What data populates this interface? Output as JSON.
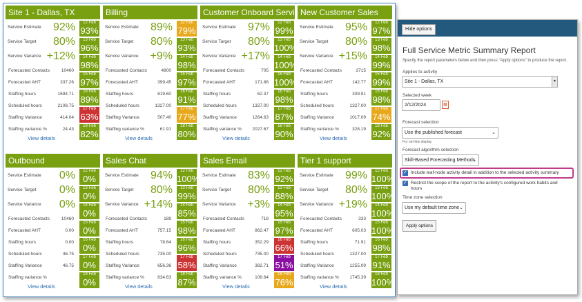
{
  "colors": {
    "green": "#78a010",
    "orange": "#e8a81c",
    "red": "#cc3333",
    "purple": "#8a0fa0",
    "link": "#2b6cb0",
    "accent_pink": "#c0398c"
  },
  "cards": [
    {
      "title": "Site 1 - Dallas, TX",
      "metrics": [
        {
          "label": "Service Estimate",
          "value": "92%"
        },
        {
          "label": "Service Target",
          "value": "80%"
        },
        {
          "label": "Service Variance",
          "value": "+12%"
        }
      ],
      "details": [
        {
          "label": "Forecasted Contacts",
          "value": "10460"
        },
        {
          "label": "Forecasted AHT",
          "value": "337.26"
        },
        {
          "label": "Staffing hours",
          "value": "1694.71"
        },
        {
          "label": "Scheduled hours",
          "value": "2108.75"
        },
        {
          "label": "Staffing Variance",
          "value": "414.04"
        },
        {
          "label": "Staffing variance %",
          "value": "24.43"
        }
      ],
      "link": "View details",
      "days": [
        {
          "date": "12 Feb",
          "pct": "93%",
          "status": "green"
        },
        {
          "date": "13 Feb",
          "pct": "96%",
          "status": "green"
        },
        {
          "date": "14 Feb",
          "pct": "98%",
          "status": "green"
        },
        {
          "date": "15 Feb",
          "pct": "97%",
          "status": "green"
        },
        {
          "date": "16 Feb",
          "pct": "89%",
          "status": "green"
        },
        {
          "date": "17 Feb",
          "pct": "63%",
          "status": "red"
        },
        {
          "date": "18 Feb",
          "pct": "82%",
          "status": "green"
        }
      ]
    },
    {
      "title": "Billing",
      "metrics": [
        {
          "label": "Service Estimate",
          "value": "89%"
        },
        {
          "label": "Service Target",
          "value": "80%"
        },
        {
          "label": "Service Variance",
          "value": "+9%"
        }
      ],
      "details": [
        {
          "label": "Forecasted Contacts",
          "value": "4800"
        },
        {
          "label": "Forecasted AHT",
          "value": "399.45"
        },
        {
          "label": "Staffing hours",
          "value": "819.60"
        },
        {
          "label": "Scheduled hours",
          "value": "1327.00"
        },
        {
          "label": "Staffing Variance",
          "value": "507.40"
        },
        {
          "label": "Staffing variance %",
          "value": "61.91"
        }
      ],
      "link": "View details",
      "days": [
        {
          "date": "12 Feb",
          "pct": "79%",
          "status": "orange"
        },
        {
          "date": "13 Feb",
          "pct": "93%",
          "status": "green"
        },
        {
          "date": "14 Feb",
          "pct": "98%",
          "status": "green"
        },
        {
          "date": "15 Feb",
          "pct": "97%",
          "status": "green"
        },
        {
          "date": "16 Feb",
          "pct": "91%",
          "status": "green"
        },
        {
          "date": "17 Feb",
          "pct": "77%",
          "status": "orange"
        },
        {
          "date": "18 Feb",
          "pct": "80%",
          "status": "green"
        }
      ]
    },
    {
      "title": "Customer Onboard Service",
      "metrics": [
        {
          "label": "Service Estimate",
          "value": "97%"
        },
        {
          "label": "Service Target",
          "value": "80%"
        },
        {
          "label": "Service Variance",
          "value": "+17%"
        }
      ],
      "details": [
        {
          "label": "Forecasted Contacts",
          "value": "705"
        },
        {
          "label": "Forecasted AHT",
          "value": "171.86"
        },
        {
          "label": "Staffing hours",
          "value": "62.37"
        },
        {
          "label": "Scheduled hours",
          "value": "1327.00"
        },
        {
          "label": "Staffing Variance",
          "value": "1264.63"
        },
        {
          "label": "Staffing variance %",
          "value": "2027.67"
        }
      ],
      "link": "View details",
      "days": [
        {
          "date": "12 Feb",
          "pct": "99%",
          "status": "green"
        },
        {
          "date": "13 Feb",
          "pct": "100%",
          "status": "green"
        },
        {
          "date": "14 Feb",
          "pct": "100%",
          "status": "green"
        },
        {
          "date": "15 Feb",
          "pct": "100%",
          "status": "green"
        },
        {
          "date": "16 Feb",
          "pct": "98%",
          "status": "green"
        },
        {
          "date": "17 Feb",
          "pct": "87%",
          "status": "green"
        },
        {
          "date": "18 Feb",
          "pct": "90%",
          "status": "green"
        }
      ]
    },
    {
      "title": "New Customer Sales",
      "metrics": [
        {
          "label": "Service Estimate",
          "value": "95%"
        },
        {
          "label": "Service Target",
          "value": "80%"
        },
        {
          "label": "Service Variance",
          "value": "+15%"
        }
      ],
      "details": [
        {
          "label": "Forecasted Contacts",
          "value": "3715"
        },
        {
          "label": "Forecasted AHT",
          "value": "142.77"
        },
        {
          "label": "Staffing hours",
          "value": "309.91"
        },
        {
          "label": "Scheduled hours",
          "value": "1327.00"
        },
        {
          "label": "Staffing Variance",
          "value": "1017.09"
        },
        {
          "label": "Staffing variance %",
          "value": "328.19"
        }
      ],
      "link": "View details",
      "days": [
        {
          "date": "12 Feb",
          "pct": "97%",
          "status": "green"
        },
        {
          "date": "13 Feb",
          "pct": "98%",
          "status": "green"
        },
        {
          "date": "14 Feb",
          "pct": "99%",
          "status": "green"
        },
        {
          "date": "15 Feb",
          "pct": "99%",
          "status": "green"
        },
        {
          "date": "16 Feb",
          "pct": "98%",
          "status": "green"
        },
        {
          "date": "17 Feb",
          "pct": "74%",
          "status": "orange"
        },
        {
          "date": "18 Feb",
          "pct": "92%",
          "status": "green"
        }
      ]
    },
    {
      "title": "Outbound",
      "metrics": [
        {
          "label": "Service Estimate",
          "value": "0%"
        },
        {
          "label": "Service Target",
          "value": "0%"
        },
        {
          "label": "Service Variance",
          "value": "0%"
        }
      ],
      "details": [
        {
          "label": "Forecasted Contacts",
          "value": "10460"
        },
        {
          "label": "Forecasted AHT",
          "value": "0.00"
        },
        {
          "label": "Staffing hours",
          "value": "0.00"
        },
        {
          "label": "Scheduled hours",
          "value": "46.75"
        },
        {
          "label": "Staffing Variance",
          "value": "46.75"
        },
        {
          "label": "Staffing variance %",
          "value": ""
        }
      ],
      "link": "View details",
      "days": [
        {
          "date": "12 Feb",
          "pct": "0%",
          "status": "green"
        },
        {
          "date": "13 Feb",
          "pct": "0%",
          "status": "green"
        },
        {
          "date": "14 Feb",
          "pct": "0%",
          "status": "green"
        },
        {
          "date": "15 Feb",
          "pct": "0%",
          "status": "green"
        },
        {
          "date": "16 Feb",
          "pct": "0%",
          "status": "green"
        },
        {
          "date": "17 Feb",
          "pct": "0%",
          "status": "green"
        },
        {
          "date": "18 Feb",
          "pct": "0%",
          "status": "green"
        }
      ]
    },
    {
      "title": "Sales Chat",
      "metrics": [
        {
          "label": "Service Estimate",
          "value": "94%"
        },
        {
          "label": "Service Target",
          "value": "80%"
        },
        {
          "label": "Service Variance",
          "value": "+14%"
        }
      ],
      "details": [
        {
          "label": "Forecasted Contacts",
          "value": "189"
        },
        {
          "label": "Forecasted AHT",
          "value": "757.15"
        },
        {
          "label": "Staffing hours",
          "value": "78.64"
        },
        {
          "label": "Scheduled hours",
          "value": "735.00"
        },
        {
          "label": "Staffing Variance",
          "value": "656.36"
        },
        {
          "label": "Staffing variance %",
          "value": "834.63"
        }
      ],
      "link": "View details",
      "days": [
        {
          "date": "12 Feb",
          "pct": "100%",
          "status": "green"
        },
        {
          "date": "13 Feb",
          "pct": "99%",
          "status": "green"
        },
        {
          "date": "14 Feb",
          "pct": "85%",
          "status": "green"
        },
        {
          "date": "15 Feb",
          "pct": "98%",
          "status": "green"
        },
        {
          "date": "16 Feb",
          "pct": "96%",
          "status": "green"
        },
        {
          "date": "17 Feb",
          "pct": "58%",
          "status": "red"
        },
        {
          "date": "18 Feb",
          "pct": "87%",
          "status": "green"
        }
      ]
    },
    {
      "title": "Sales Email",
      "metrics": [
        {
          "label": "Service Estimate",
          "value": "83%"
        },
        {
          "label": "Service Target",
          "value": "80%"
        },
        {
          "label": "Service Variance",
          "value": "+3%"
        }
      ],
      "details": [
        {
          "label": "Forecasted Contacts",
          "value": "718"
        },
        {
          "label": "Forecasted AHT",
          "value": "862.47"
        },
        {
          "label": "Staffing hours",
          "value": "352.29"
        },
        {
          "label": "Scheduled hours",
          "value": "735.00"
        },
        {
          "label": "Staffing Variance",
          "value": "382.71"
        },
        {
          "label": "Staffing variance %",
          "value": "108.64"
        }
      ],
      "link": "View details",
      "days": [
        {
          "date": "12 Feb",
          "pct": "92%",
          "status": "green"
        },
        {
          "date": "13 Feb",
          "pct": "88%",
          "status": "green"
        },
        {
          "date": "14 Feb",
          "pct": "95%",
          "status": "green"
        },
        {
          "date": "15 Feb",
          "pct": "97%",
          "status": "green"
        },
        {
          "date": "16 Feb",
          "pct": "66%",
          "status": "red"
        },
        {
          "date": "17 Feb",
          "pct": "51%",
          "status": "purple"
        },
        {
          "date": "18 Feb",
          "pct": "76%",
          "status": "orange"
        }
      ]
    },
    {
      "title": "Tier 1 support",
      "metrics": [
        {
          "label": "Service Estimate",
          "value": "99%"
        },
        {
          "label": "Service Target",
          "value": "80%"
        },
        {
          "label": "Service Variance",
          "value": "+19%"
        }
      ],
      "details": [
        {
          "label": "Forecasted Contacts",
          "value": "333"
        },
        {
          "label": "Forecasted AHT",
          "value": "605.03"
        },
        {
          "label": "Staffing hours",
          "value": "71.91"
        },
        {
          "label": "Scheduled hours",
          "value": "1327.00"
        },
        {
          "label": "Staffing Variance",
          "value": "1255.09"
        },
        {
          "label": "Staffing variance %",
          "value": "1745.39"
        }
      ],
      "link": "View details",
      "days": [
        {
          "date": "12 Feb",
          "pct": "100%",
          "status": "green"
        },
        {
          "date": "13 Feb",
          "pct": "100%",
          "status": "green"
        },
        {
          "date": "14 Feb",
          "pct": "100%",
          "status": "green"
        },
        {
          "date": "15 Feb",
          "pct": "100%",
          "status": "green"
        },
        {
          "date": "16 Feb",
          "pct": "98%",
          "status": "green"
        },
        {
          "date": "17 Feb",
          "pct": "91%",
          "status": "green"
        },
        {
          "date": "18 Feb",
          "pct": "100%",
          "status": "green"
        }
      ]
    }
  ],
  "panel": {
    "hide_options": "Hide options",
    "title": "Full Service Metric Summary Report",
    "intro": "Specify the report parameters below and then press \"Apply options\" to produce the report.",
    "applies_label": "Applies to activity",
    "applies_value": "Site 1 - Dallas, TX",
    "week_label": "Selected week",
    "week_value": "2/12/2024",
    "forecast_label": "Forecast selection",
    "forecast_value": "Use the published forecast",
    "forecast_note": "For net-line display",
    "algorithm_label": "Forecast algorithm selection",
    "algorithm_value": "Skill-Based Forecasting Methods",
    "include_leaf_label": "Include leaf-node activity detail in addition to the selected activity summary",
    "include_leaf_checked": true,
    "restrict_label": "Restrict the scope of the report to the activity's configured work habits and hours",
    "restrict_checked": true,
    "timezone_label": "Time zone selection",
    "timezone_value": "Use my default time zone",
    "apply_button": "Apply options"
  }
}
